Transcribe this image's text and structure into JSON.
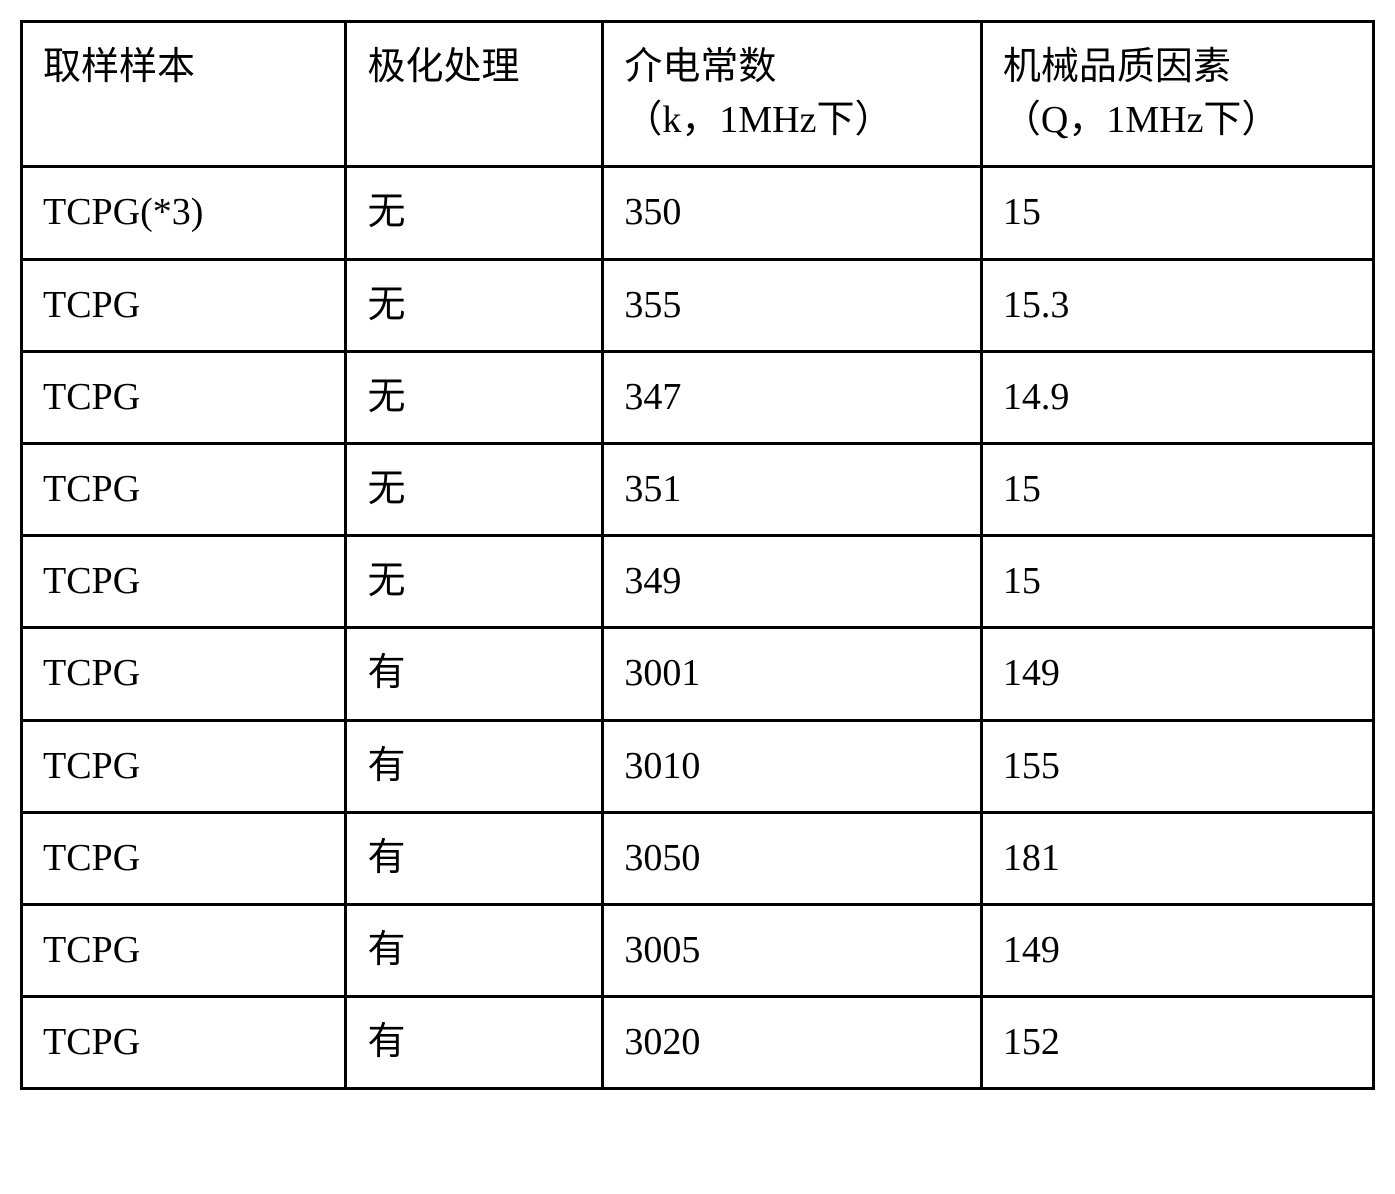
{
  "table": {
    "columns": [
      {
        "line1": "取样样本",
        "line2": ""
      },
      {
        "line1": "极化处理",
        "line2": ""
      },
      {
        "line1": "介电常数",
        "line2": "（k，1MHz下）"
      },
      {
        "line1": "机械品质因素",
        "line2": "（Q，1MHz下）"
      }
    ],
    "rows": [
      [
        "TCPG(*3)",
        "无",
        "350",
        "15"
      ],
      [
        "TCPG",
        "无",
        "355",
        "15.3"
      ],
      [
        "TCPG",
        "无",
        "347",
        "14.9"
      ],
      [
        "TCPG",
        "无",
        "351",
        "15"
      ],
      [
        "TCPG",
        "无",
        "349",
        "15"
      ],
      [
        "TCPG",
        "有",
        "3001",
        "149"
      ],
      [
        "TCPG",
        "有",
        "3010",
        "155"
      ],
      [
        "TCPG",
        "有",
        "3050",
        "181"
      ],
      [
        "TCPG",
        "有",
        "3005",
        "149"
      ],
      [
        "TCPG",
        "有",
        "3020",
        "152"
      ]
    ],
    "border_color": "#000000",
    "background_color": "#ffffff",
    "text_color": "#000000",
    "font_size": 38,
    "border_width": 3
  }
}
